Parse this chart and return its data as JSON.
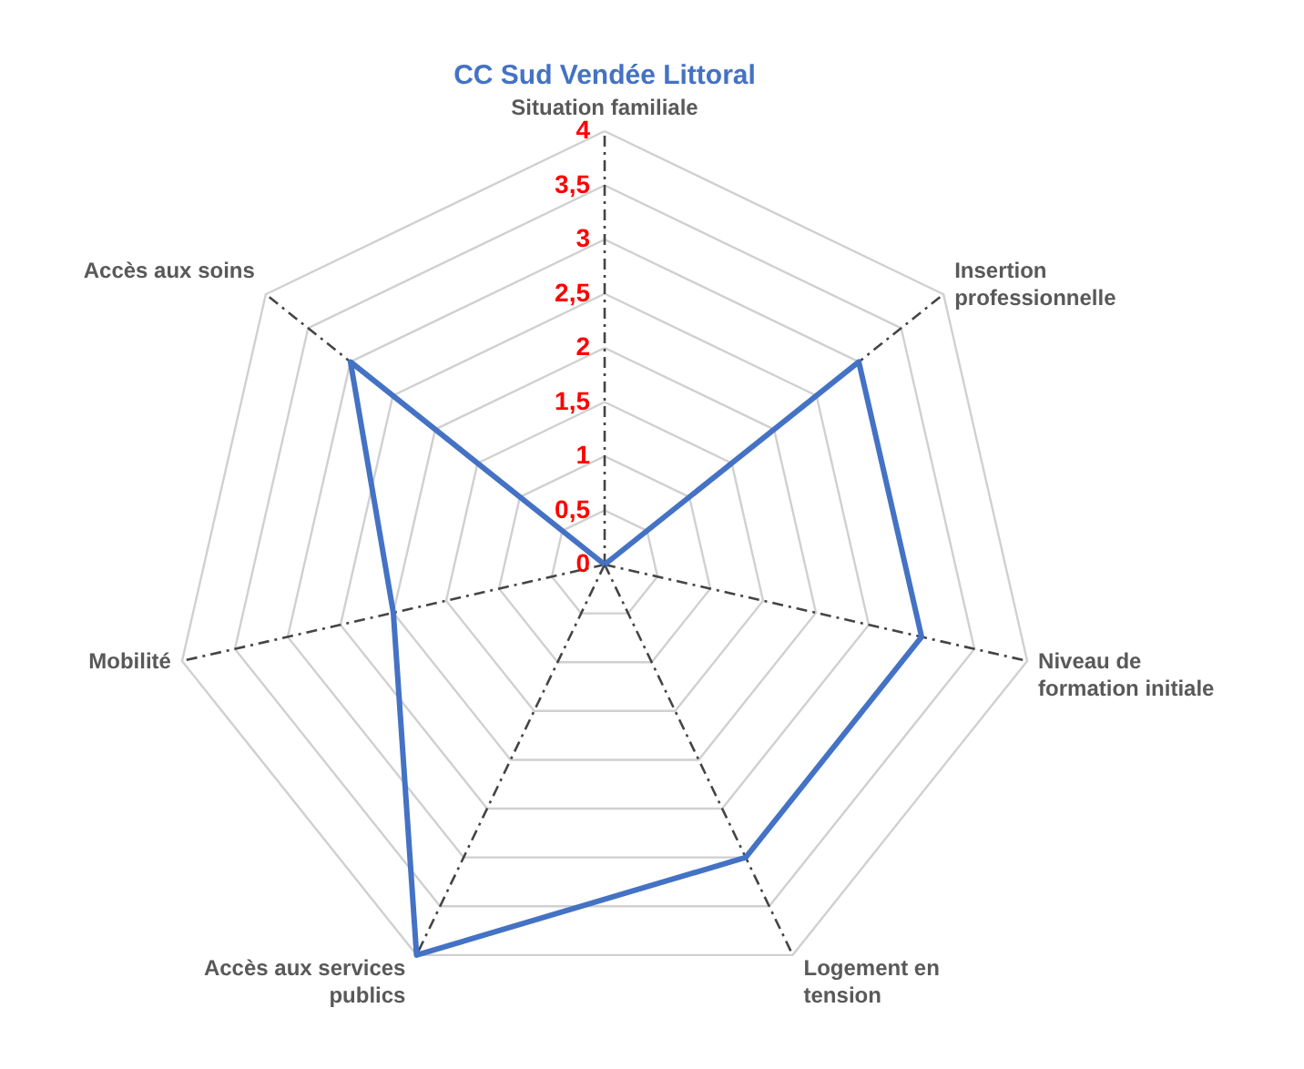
{
  "chart_data": {
    "type": "radar",
    "title": "CC Sud Vendée Littoral",
    "categories": [
      "Situation familiale",
      "Insertion professionnelle",
      "Niveau de formation initiale",
      "Logement en tension",
      "Accès aux services publics",
      "Mobilité",
      "Accès aux soins"
    ],
    "series": [
      {
        "color": "#4472c4",
        "values": [
          0,
          3,
          3,
          3,
          4,
          2,
          3
        ]
      }
    ],
    "ylim": [
      0,
      4
    ],
    "yticks": [
      0,
      {
        "value": 0.5,
        "label": "0,5"
      },
      1,
      {
        "value": 1.5,
        "label": "1,5"
      },
      2,
      {
        "value": 2.5,
        "label": "2,5"
      },
      3,
      {
        "value": 3.5,
        "label": "3,5"
      },
      4
    ],
    "grid": true,
    "marker": "none",
    "line_style": "solid"
  }
}
